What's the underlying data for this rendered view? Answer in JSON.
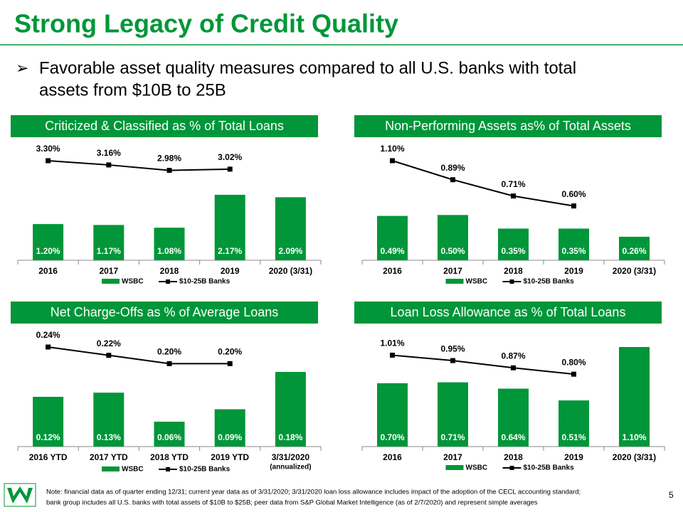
{
  "title": "Strong Legacy of Credit Quality",
  "bullet": [
    "Favorable asset quality measures compared to all U.S. banks with total",
    "assets from $10B to 25B"
  ],
  "note": [
    "Note:  financial data as of quarter ending 12/31; current year data as of 3/31/2020; 3/31/2020 loan loss allowance includes impact of the adoption of the CECL  accounting standard;",
    "bank group includes all U.S. banks with total assets of $10B to $25B; peer data from S&P Global Market Intelligence (as of 2/7/2020) and represent simple averages"
  ],
  "page_number": "5",
  "chart_data": [
    {
      "type": "bar",
      "title": "Criticized & Classified as % of Total Loans",
      "categories": [
        "2016",
        "2017",
        "2018",
        "2019",
        "2020 (3/31)"
      ],
      "series": [
        {
          "name": "WSBC",
          "color": "#009639",
          "values": [
            1.2,
            1.17,
            1.08,
            2.17,
            2.09
          ],
          "value_labels": [
            "1.20%",
            "1.17%",
            "1.08%",
            "2.17%",
            "2.09%"
          ]
        },
        {
          "name": "$10-25B Banks",
          "color": "#000000",
          "type": "line",
          "values": [
            3.3,
            3.16,
            2.98,
            3.02,
            null
          ],
          "value_labels": [
            "3.30%",
            "3.16%",
            "2.98%",
            "3.02%",
            null
          ]
        }
      ]
    },
    {
      "type": "bar",
      "title": "Non-Performing  Assets as% of Total Assets",
      "categories": [
        "2016",
        "2017",
        "2018",
        "2019",
        "2020 (3/31)"
      ],
      "series": [
        {
          "name": "WSBC",
          "color": "#009639",
          "values": [
            0.49,
            0.5,
            0.35,
            0.35,
            0.26
          ],
          "value_labels": [
            "0.49%",
            "0.50%",
            "0.35%",
            "0.35%",
            "0.26%"
          ]
        },
        {
          "name": "$10-25B Banks",
          "color": "#000000",
          "type": "line",
          "values": [
            1.1,
            0.89,
            0.71,
            0.6,
            null
          ],
          "value_labels": [
            "1.10%",
            "0.89%",
            "0.71%",
            "0.60%",
            null
          ]
        }
      ]
    },
    {
      "type": "bar",
      "title": "Net Charge-Offs as % of Average Loans",
      "categories": [
        "2016 YTD",
        "2017 YTD",
        "2018 YTD",
        "2019 YTD",
        "3/31/2020"
      ],
      "category_note": "(annualized)",
      "series": [
        {
          "name": "WSBC",
          "color": "#009639",
          "values": [
            0.12,
            0.13,
            0.06,
            0.09,
            0.18
          ],
          "value_labels": [
            "0.12%",
            "0.13%",
            "0.06%",
            "0.09%",
            "0.18%"
          ]
        },
        {
          "name": "$10-25B Banks",
          "color": "#000000",
          "type": "line",
          "values": [
            0.24,
            0.22,
            0.2,
            0.2,
            null
          ],
          "value_labels": [
            "0.24%",
            "0.22%",
            "0.20%",
            "0.20%",
            null
          ]
        }
      ]
    },
    {
      "type": "bar",
      "title": "Loan Loss Allowance  as % of Total Loans",
      "categories": [
        "2016",
        "2017",
        "2018",
        "2019",
        "2020 (3/31)"
      ],
      "series": [
        {
          "name": "WSBC",
          "color": "#009639",
          "values": [
            0.7,
            0.71,
            0.64,
            0.51,
            1.1
          ],
          "value_labels": [
            "0.70%",
            "0.71%",
            "0.64%",
            "0.51%",
            "1.10%"
          ]
        },
        {
          "name": "$10-25B Banks",
          "color": "#000000",
          "type": "line",
          "values": [
            1.01,
            0.95,
            0.87,
            0.8,
            null
          ],
          "value_labels": [
            "1.01%",
            "0.95%",
            "0.87%",
            "0.80%",
            null
          ]
        }
      ]
    }
  ]
}
